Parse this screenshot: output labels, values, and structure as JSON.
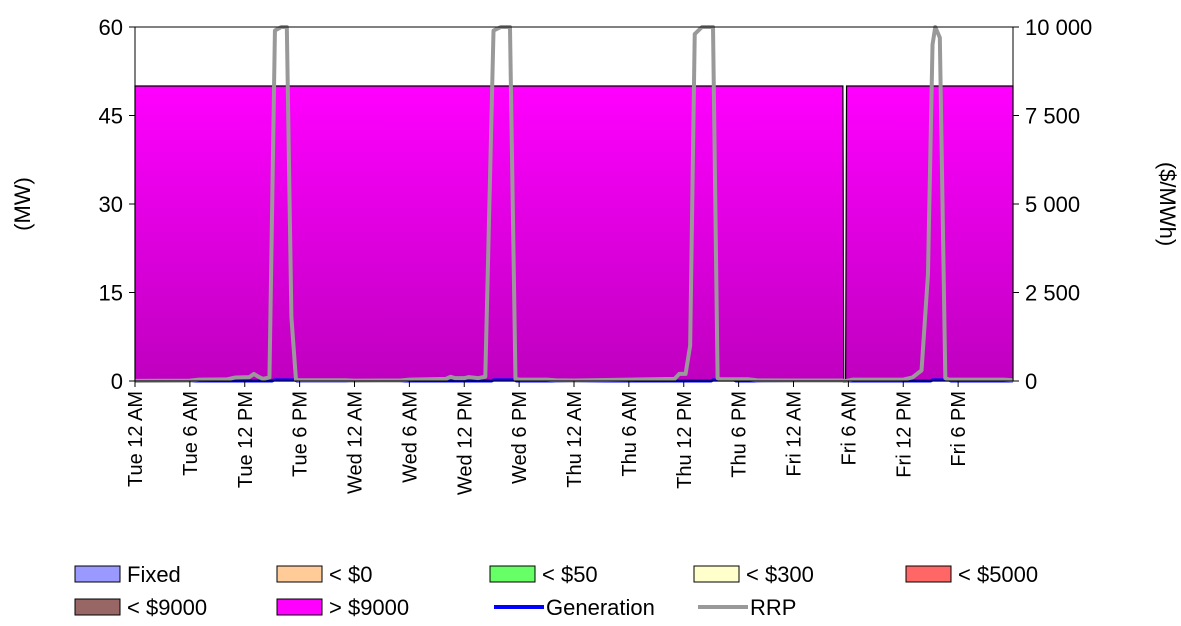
{
  "chart_data": {
    "type": "area",
    "categories": [
      "Tue 12 AM",
      "Tue 6 AM",
      "Tue 12 PM",
      "Tue 6 PM",
      "Wed 12 AM",
      "Wed 6 AM",
      "Wed 12 PM",
      "Wed 6 PM",
      "Thu 12 AM",
      "Thu 6 AM",
      "Thu 12 PM",
      "Thu 6 PM",
      "Fri 12 AM",
      "Fri 6 AM",
      "Fri 12 PM",
      "Fri 6 PM"
    ],
    "x_hours": [
      0,
      6,
      12,
      18,
      24,
      30,
      36,
      42,
      48,
      54,
      60,
      66,
      72,
      78,
      84,
      90
    ],
    "x_range_hours": [
      0,
      96
    ],
    "left_axis": {
      "label": "(MW)",
      "ylim": [
        0,
        60
      ],
      "ticks": [
        "0",
        "15",
        "30",
        "45",
        "60"
      ],
      "tick_values": [
        0,
        15,
        30,
        45,
        60
      ]
    },
    "right_axis": {
      "label": "($/MWh)",
      "ylim": [
        0,
        10000
      ],
      "ticks": [
        "0",
        "2 500",
        "5 000",
        "7 500",
        "10 000"
      ],
      "tick_values": [
        0,
        2500,
        5000,
        7500,
        10000
      ]
    },
    "series": [
      {
        "name": "Fixed",
        "kind": "area",
        "axis": "left",
        "color": "#9999ff",
        "points": [
          [
            0,
            0
          ],
          [
            96,
            0
          ]
        ]
      },
      {
        "name": "< $0",
        "kind": "area",
        "axis": "left",
        "color": "#ffcc99",
        "points": [
          [
            0,
            0
          ],
          [
            96,
            0
          ]
        ]
      },
      {
        "name": "< $50",
        "kind": "area",
        "axis": "left",
        "color": "#66ff66",
        "points": [
          [
            0,
            0
          ],
          [
            96,
            0
          ]
        ]
      },
      {
        "name": "< $300",
        "kind": "area",
        "axis": "left",
        "color": "#ffffcc",
        "points": [
          [
            0,
            0
          ],
          [
            96,
            0
          ]
        ]
      },
      {
        "name": "< $5000",
        "kind": "area",
        "axis": "left",
        "color": "#ff6666",
        "points": [
          [
            0,
            0
          ],
          [
            96,
            0
          ]
        ]
      },
      {
        "name": "< $9000",
        "kind": "area",
        "axis": "left",
        "color": "#996666",
        "points": [
          [
            0,
            0
          ],
          [
            96,
            0
          ]
        ]
      },
      {
        "name": "> $9000",
        "kind": "area",
        "axis": "left",
        "color": "#ff00ff",
        "points": [
          [
            0,
            50
          ],
          [
            77.4,
            50
          ],
          [
            77.5,
            0
          ],
          [
            77.7,
            0
          ],
          [
            77.8,
            50
          ],
          [
            96,
            50
          ]
        ]
      },
      {
        "name": "Generation",
        "kind": "line",
        "axis": "left",
        "color": "#0000ff",
        "points": [
          [
            0,
            0
          ],
          [
            15,
            0
          ],
          [
            15.2,
            0.2
          ],
          [
            17.5,
            0.2
          ],
          [
            17.7,
            0
          ],
          [
            39,
            0
          ],
          [
            39.2,
            0.2
          ],
          [
            41.5,
            0.2
          ],
          [
            41.7,
            0
          ],
          [
            63,
            0
          ],
          [
            63.2,
            0.2
          ],
          [
            65.5,
            0.2
          ],
          [
            65.7,
            0
          ],
          [
            87,
            0
          ],
          [
            87.2,
            0.2
          ],
          [
            89,
            0.2
          ],
          [
            89.2,
            0
          ],
          [
            96,
            0
          ]
        ]
      },
      {
        "name": "RRP",
        "kind": "line",
        "axis": "right",
        "color": "#999999",
        "points": [
          [
            0,
            5
          ],
          [
            6,
            10
          ],
          [
            7,
            40
          ],
          [
            10,
            45
          ],
          [
            11,
            100
          ],
          [
            12.5,
            110
          ],
          [
            13,
            200
          ],
          [
            13.5,
            120
          ],
          [
            14,
            60
          ],
          [
            14.7,
            100
          ],
          [
            15.3,
            9900
          ],
          [
            16,
            10000
          ],
          [
            16.6,
            10000
          ],
          [
            17.1,
            1800
          ],
          [
            17.6,
            40
          ],
          [
            18,
            20
          ],
          [
            23,
            20
          ],
          [
            24,
            10
          ],
          [
            29,
            15
          ],
          [
            30,
            40
          ],
          [
            34,
            60
          ],
          [
            34.5,
            120
          ],
          [
            35,
            80
          ],
          [
            36,
            80
          ],
          [
            36.5,
            110
          ],
          [
            37.5,
            80
          ],
          [
            38.3,
            120
          ],
          [
            39.2,
            9900
          ],
          [
            40,
            10000
          ],
          [
            41,
            10000
          ],
          [
            41.6,
            60
          ],
          [
            42,
            40
          ],
          [
            45,
            40
          ],
          [
            46,
            20
          ],
          [
            48,
            15
          ],
          [
            54,
            40
          ],
          [
            59,
            60
          ],
          [
            59.5,
            200
          ],
          [
            60.2,
            200
          ],
          [
            60.7,
            1000
          ],
          [
            61.2,
            9800
          ],
          [
            62,
            10000
          ],
          [
            63.2,
            10000
          ],
          [
            63.7,
            80
          ],
          [
            64,
            50
          ],
          [
            67,
            50
          ],
          [
            68,
            20
          ],
          [
            72,
            15
          ],
          [
            77.4,
            15
          ],
          [
            77.5,
            0
          ],
          [
            77.7,
            0
          ],
          [
            78,
            15
          ],
          [
            78.5,
            40
          ],
          [
            84,
            40
          ],
          [
            85,
            100
          ],
          [
            86,
            300
          ],
          [
            86.7,
            3000
          ],
          [
            87.2,
            9500
          ],
          [
            87.5,
            10000
          ],
          [
            88,
            9700
          ],
          [
            88.6,
            80
          ],
          [
            89,
            40
          ],
          [
            95,
            40
          ],
          [
            96,
            20
          ]
        ]
      }
    ],
    "legend": [
      "Fixed",
      "< $0",
      "< $50",
      "< $300",
      "< $5000",
      "< $9000",
      "> $9000",
      "Generation",
      "RRP"
    ],
    "legend_placement": "bottom",
    "grid": false
  }
}
